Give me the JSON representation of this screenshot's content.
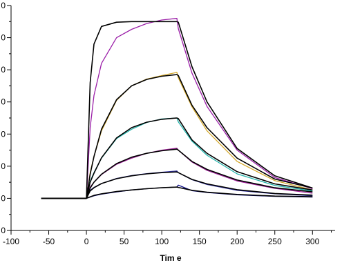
{
  "chart_data": {
    "type": "line",
    "title": "",
    "xlabel": "Tim e",
    "ylabel": "",
    "xlim": [
      -100,
      330
    ],
    "ylim": [
      0,
      70
    ],
    "x_ticks": [
      -100,
      -50,
      0,
      50,
      100,
      150,
      200,
      250,
      300
    ],
    "x_tick_labels": [
      "-100",
      "-50",
      "0",
      "50",
      "100",
      "150",
      "200",
      "250",
      "300"
    ],
    "y_ticks": [
      0,
      10,
      20,
      30,
      40,
      50,
      60,
      70
    ],
    "y_tick_labels": [
      "0",
      "0",
      "0",
      "0",
      "0",
      "0",
      "0",
      "0"
    ],
    "grid": false,
    "legend": "none",
    "colors": {
      "fit": "#000000",
      "measured": [
        "#000080",
        "#2f2fa0",
        "#a0209a",
        "#20b2aa",
        "#d4a82a",
        "#9b1fa8"
      ]
    },
    "series": [
      {
        "kind": "measured",
        "color_index": 0,
        "x": [
          -60,
          0,
          10,
          20,
          40,
          60,
          80,
          100,
          120,
          122,
          140,
          160,
          200,
          250,
          300
        ],
        "y": [
          10.0,
          10.0,
          10.8,
          11.3,
          12.0,
          12.6,
          13.0,
          13.3,
          13.5,
          14.1,
          12.4,
          11.8,
          11.1,
          10.6,
          10.4
        ]
      },
      {
        "kind": "fit",
        "x": [
          -60,
          0,
          10,
          20,
          40,
          60,
          80,
          100,
          120,
          122,
          140,
          160,
          200,
          250,
          300
        ],
        "y": [
          10.0,
          10.0,
          10.9,
          11.4,
          12.1,
          12.6,
          13.0,
          13.3,
          13.5,
          13.4,
          12.5,
          11.9,
          11.2,
          10.7,
          10.5
        ]
      },
      {
        "kind": "measured",
        "color_index": 1,
        "x": [
          -60,
          0,
          5,
          10,
          20,
          40,
          60,
          80,
          100,
          120,
          122,
          140,
          160,
          200,
          250,
          300
        ],
        "y": [
          10.0,
          10.0,
          12.5,
          13.4,
          14.6,
          16.2,
          17.1,
          17.7,
          18.1,
          18.5,
          18.0,
          15.8,
          14.3,
          12.5,
          11.4,
          10.8
        ]
      },
      {
        "kind": "fit",
        "x": [
          -60,
          0,
          5,
          10,
          20,
          40,
          60,
          80,
          100,
          120,
          122,
          140,
          160,
          200,
          250,
          300
        ],
        "y": [
          10.0,
          10.0,
          12.3,
          13.3,
          14.6,
          16.1,
          17.0,
          17.6,
          18.0,
          18.2,
          18.0,
          15.9,
          14.5,
          12.7,
          11.5,
          11.0
        ]
      },
      {
        "kind": "measured",
        "color_index": 2,
        "x": [
          -60,
          0,
          5,
          10,
          20,
          40,
          60,
          80,
          100,
          120,
          122,
          140,
          160,
          200,
          250,
          300
        ],
        "y": [
          10.0,
          10.0,
          13.5,
          15.0,
          17.4,
          20.6,
          22.5,
          24.0,
          25.0,
          25.6,
          25.0,
          21.3,
          18.7,
          15.4,
          13.1,
          11.6
        ]
      },
      {
        "kind": "fit",
        "x": [
          -60,
          0,
          5,
          10,
          20,
          40,
          60,
          80,
          100,
          120,
          122,
          140,
          160,
          200,
          250,
          300
        ],
        "y": [
          10.0,
          10.0,
          13.2,
          15.0,
          17.5,
          20.8,
          22.8,
          24.0,
          24.8,
          25.3,
          25.0,
          21.5,
          19.0,
          15.7,
          13.3,
          12.0
        ]
      },
      {
        "kind": "measured",
        "color_index": 3,
        "x": [
          -60,
          0,
          5,
          10,
          20,
          40,
          60,
          80,
          100,
          120,
          122,
          140,
          160,
          200,
          250,
          300
        ],
        "y": [
          10.0,
          10.0,
          15.3,
          18.0,
          22.5,
          28.6,
          31.5,
          33.6,
          34.7,
          35.0,
          33.8,
          27.8,
          23.4,
          17.6,
          14.0,
          12.3
        ]
      },
      {
        "kind": "fit",
        "x": [
          -60,
          0,
          5,
          10,
          20,
          40,
          60,
          80,
          100,
          120,
          122,
          140,
          160,
          200,
          250,
          300
        ],
        "y": [
          10.0,
          10.0,
          15.0,
          17.8,
          22.6,
          28.8,
          32.0,
          33.7,
          34.6,
          35.0,
          34.8,
          28.2,
          24.0,
          18.3,
          14.5,
          12.6
        ]
      },
      {
        "kind": "measured",
        "color_index": 4,
        "x": [
          -60,
          0,
          5,
          10,
          20,
          40,
          60,
          80,
          100,
          120,
          122,
          140,
          160,
          200,
          250,
          300
        ],
        "y": [
          10.0,
          10.0,
          18.0,
          23.0,
          31.0,
          40.5,
          45.0,
          47.1,
          48.2,
          49.2,
          47.5,
          38.5,
          31.0,
          21.5,
          15.5,
          12.6
        ]
      },
      {
        "kind": "fit",
        "x": [
          -60,
          0,
          5,
          10,
          20,
          40,
          60,
          80,
          100,
          120,
          122,
          140,
          160,
          200,
          250,
          300
        ],
        "y": [
          10.0,
          10.0,
          17.5,
          23.0,
          31.5,
          40.7,
          45.0,
          47.0,
          48.0,
          48.5,
          48.2,
          39.0,
          32.0,
          22.5,
          16.0,
          13.2
        ]
      },
      {
        "kind": "measured",
        "color_index": 5,
        "x": [
          -60,
          0,
          5,
          10,
          20,
          40,
          60,
          80,
          100,
          120,
          122,
          140,
          160,
          200,
          250,
          300
        ],
        "y": [
          10.0,
          10.0,
          32.0,
          42.0,
          52.0,
          60.0,
          62.6,
          64.4,
          65.5,
          66.0,
          62.8,
          49.0,
          38.6,
          25.0,
          16.5,
          13.0
        ]
      },
      {
        "kind": "fit",
        "x": [
          -60,
          0,
          5,
          10,
          20,
          40,
          60,
          80,
          100,
          120,
          122,
          140,
          160,
          200,
          250,
          300
        ],
        "y": [
          10.0,
          10.0,
          46.0,
          58.0,
          63.5,
          64.8,
          65.0,
          65.0,
          65.0,
          65.0,
          64.8,
          51.0,
          40.0,
          25.5,
          17.0,
          13.2
        ]
      }
    ]
  }
}
